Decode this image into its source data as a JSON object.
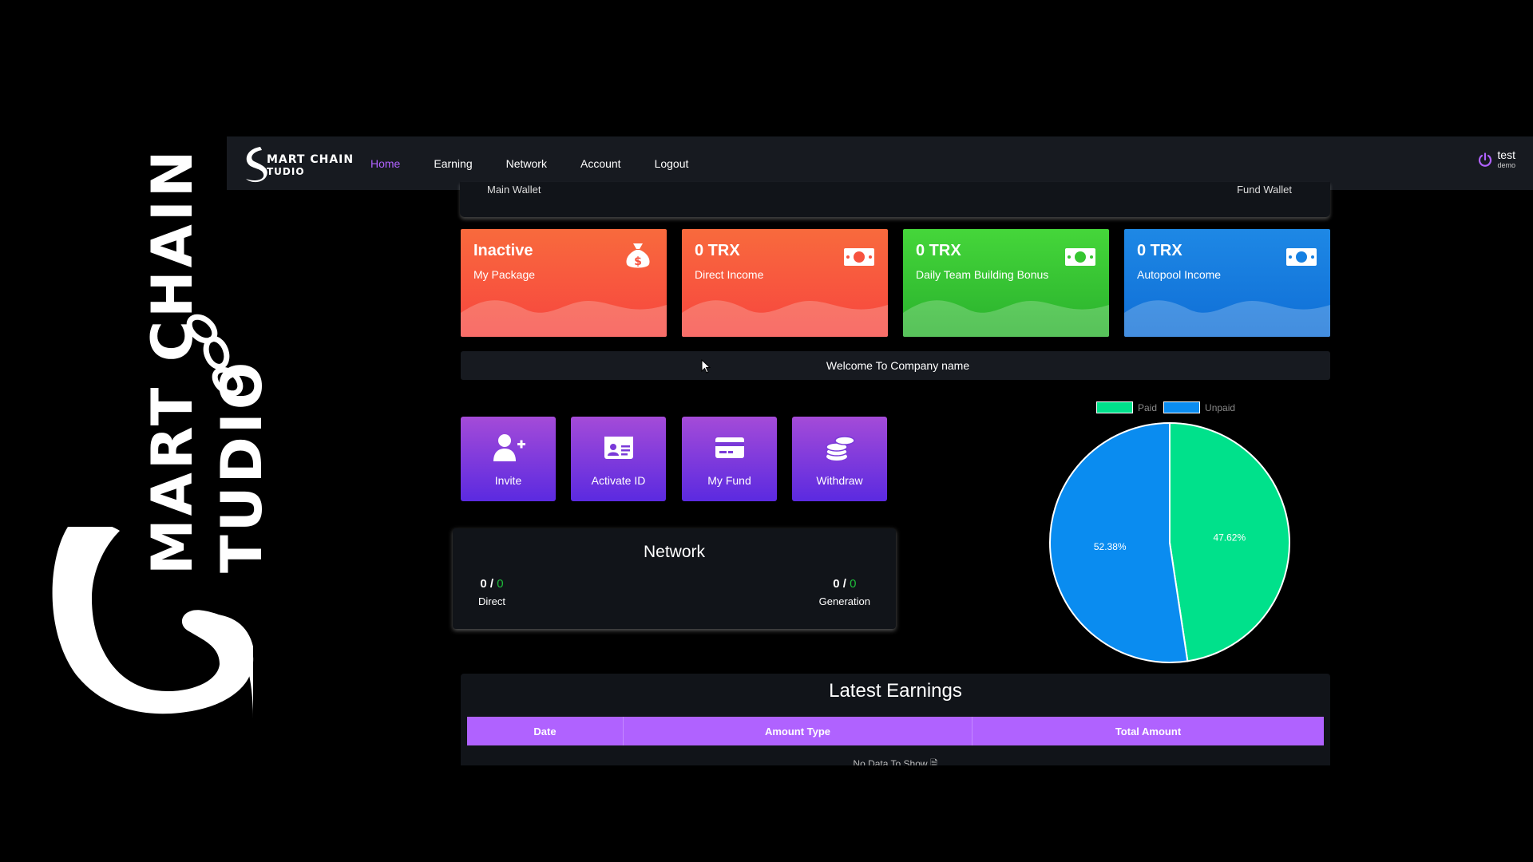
{
  "watermark": {
    "line1": "MART CHAIN",
    "line2": "TUDIO"
  },
  "brand": {
    "line1": "MART CHAIN",
    "line2": "TUDIO"
  },
  "nav": {
    "items": [
      {
        "label": "Home",
        "active": true
      },
      {
        "label": "Earning"
      },
      {
        "label": "Network"
      },
      {
        "label": "Account"
      },
      {
        "label": "Logout"
      }
    ]
  },
  "user": {
    "name": "test",
    "sub": "demo",
    "icon": "power-icon"
  },
  "wallets": {
    "left": "Main Wallet",
    "right": "Fund Wallet"
  },
  "cards": [
    {
      "value": "Inactive",
      "label": "My Package",
      "icon": "money-bag-icon"
    },
    {
      "value": "0 TRX",
      "label": "Direct Income",
      "icon": "cash-icon"
    },
    {
      "value": "0 TRX",
      "label": "Daily Team Building Bonus",
      "icon": "cash-icon"
    },
    {
      "value": "0 TRX",
      "label": "Autopool Income",
      "icon": "cash-icon"
    }
  ],
  "welcome": "Welcome To Company name",
  "actions": [
    {
      "label": "Invite",
      "icon": "user-plus-icon"
    },
    {
      "label": "Activate ID",
      "icon": "id-card-icon"
    },
    {
      "label": "My Fund",
      "icon": "credit-card-icon"
    },
    {
      "label": "Withdraw",
      "icon": "coins-icon"
    }
  ],
  "network": {
    "title": "Network",
    "direct": {
      "a": "0 /",
      "b": "0",
      "label": "Direct"
    },
    "generation": {
      "a": "0 /",
      "b": "0",
      "label": "Generation"
    }
  },
  "chart_data": {
    "type": "pie",
    "categories": [
      "Paid",
      "Unpaid"
    ],
    "values": [
      47.62,
      52.38
    ],
    "labels": [
      "47.62%",
      "52.38%"
    ],
    "colors": [
      "#00e18b",
      "#0a8cf0"
    ],
    "legend": "top"
  },
  "earnings": {
    "title": "Latest Earnings",
    "columns": [
      "Date",
      "Amount Type",
      "Total Amount"
    ],
    "empty": "No Data To Show"
  }
}
